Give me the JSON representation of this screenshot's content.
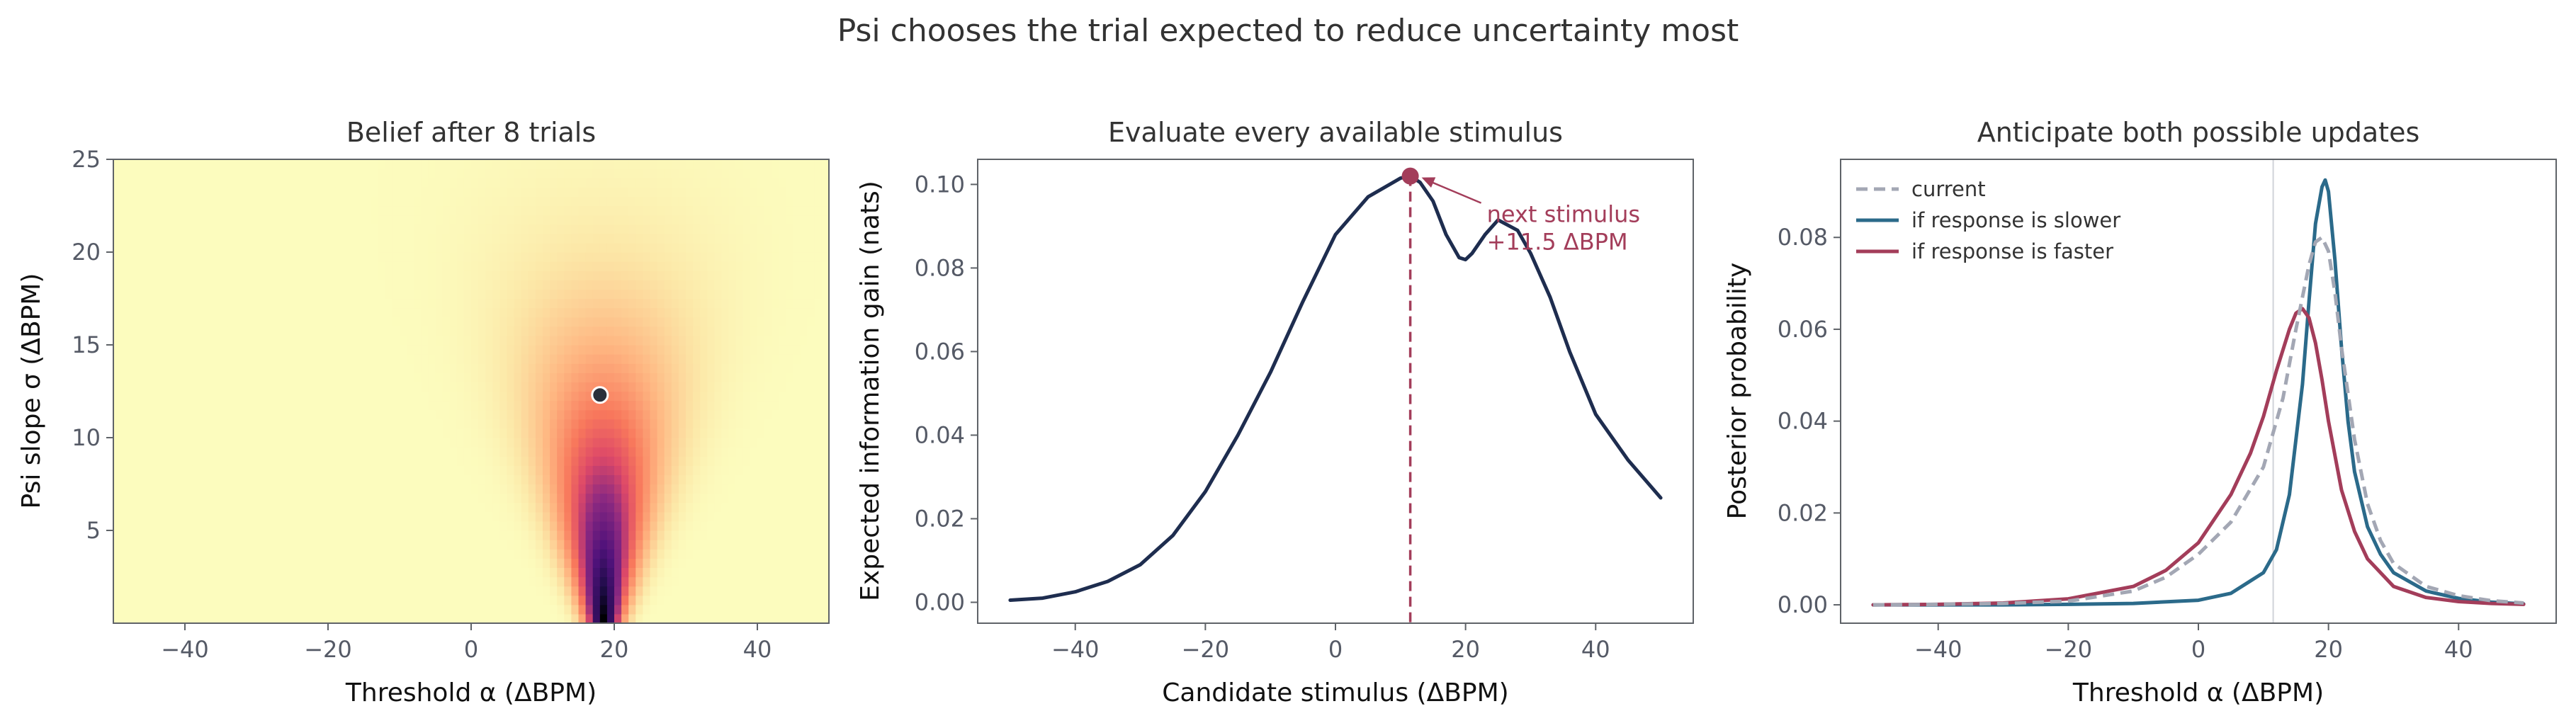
{
  "suptitle": "Psi chooses the trial expected to reduce uncertainty most",
  "chart_data": [
    {
      "type": "heatmap",
      "title": "Belief after 8 trials",
      "xlabel": "Threshold α (ΔBPM)",
      "ylabel": "Psi slope σ (ΔBPM)",
      "xlim": [
        -50,
        50
      ],
      "ylim": [
        0,
        25
      ],
      "xticks": [
        -40,
        -20,
        0,
        20,
        40
      ],
      "yticks": [
        5,
        10,
        15,
        20,
        25
      ],
      "colormap": "magma_r",
      "belief_peak": {
        "threshold": 18.5,
        "slope": 3.5
      },
      "marker": {
        "threshold": 18,
        "slope": 12.3
      },
      "grid": false
    },
    {
      "type": "line",
      "title": "Evaluate every available stimulus",
      "xlabel": "Candidate stimulus (ΔBPM)",
      "ylabel": "Expected information gain (nats)",
      "xlim": [
        -55,
        55
      ],
      "ylim": [
        -0.005,
        0.106
      ],
      "xticks": [
        -40,
        -20,
        0,
        20,
        40
      ],
      "yticks": [
        0.0,
        0.02,
        0.04,
        0.06,
        0.08,
        0.1
      ],
      "ytick_labels": [
        "0.00",
        "0.02",
        "0.04",
        "0.06",
        "0.08",
        "0.10"
      ],
      "series": [
        {
          "color": "#1e2d4f",
          "x": [
            -50,
            -45,
            -40,
            -35,
            -30,
            -25,
            -20,
            -15,
            -10,
            -5,
            0,
            5,
            10,
            11.5,
            13,
            15,
            17,
            19,
            20,
            21,
            23,
            25,
            28,
            30,
            33,
            36,
            40,
            45,
            50
          ],
          "y": [
            0.0005,
            0.001,
            0.0025,
            0.005,
            0.009,
            0.016,
            0.0265,
            0.04,
            0.055,
            0.072,
            0.088,
            0.097,
            0.1015,
            0.102,
            0.1005,
            0.096,
            0.088,
            0.0825,
            0.082,
            0.0835,
            0.088,
            0.0915,
            0.089,
            0.0835,
            0.073,
            0.06,
            0.045,
            0.034,
            0.025
          ]
        }
      ],
      "selected": {
        "x": 11.5,
        "y": 0.102,
        "color": "#a33d5a"
      },
      "annotation": {
        "line1": "next stimulus",
        "line2": "+11.5 ΔBPM"
      },
      "grid": false
    },
    {
      "type": "line",
      "title": "Anticipate both possible updates",
      "xlabel": "Threshold α (ΔBPM)",
      "ylabel": "Posterior probability",
      "xlim": [
        -55,
        55
      ],
      "ylim": [
        -0.004,
        0.097
      ],
      "xticks": [
        -40,
        -20,
        0,
        20,
        40
      ],
      "yticks": [
        0.0,
        0.02,
        0.04,
        0.06,
        0.08
      ],
      "ytick_labels": [
        "0.00",
        "0.02",
        "0.04",
        "0.06",
        "0.08"
      ],
      "vline_x": 11.5,
      "legend_position": "top-left",
      "series": [
        {
          "name": "current",
          "color": "#a3a7b4",
          "dashed": true,
          "x": [
            -50,
            -40,
            -30,
            -20,
            -10,
            -5,
            0,
            5,
            10,
            13,
            15,
            17,
            18,
            19,
            20,
            21,
            22,
            24,
            26,
            28,
            30,
            35,
            40,
            45,
            50
          ],
          "y": [
            0.0,
            0.0001,
            0.0003,
            0.0008,
            0.003,
            0.006,
            0.011,
            0.018,
            0.03,
            0.045,
            0.06,
            0.074,
            0.079,
            0.08,
            0.077,
            0.068,
            0.056,
            0.036,
            0.022,
            0.014,
            0.009,
            0.004,
            0.002,
            0.0009,
            0.0004
          ]
        },
        {
          "name": "if response is slower",
          "color": "#2b6a8a",
          "dashed": false,
          "x": [
            -50,
            -30,
            -20,
            -10,
            0,
            5,
            10,
            12,
            14,
            16,
            17,
            18,
            19,
            19.5,
            20,
            21,
            22,
            23,
            24,
            26,
            28,
            30,
            35,
            40,
            45,
            50
          ],
          "y": [
            0.0,
            0.0,
            0.0001,
            0.0003,
            0.001,
            0.0025,
            0.007,
            0.012,
            0.024,
            0.048,
            0.066,
            0.083,
            0.091,
            0.0925,
            0.09,
            0.075,
            0.056,
            0.04,
            0.029,
            0.017,
            0.011,
            0.007,
            0.003,
            0.0014,
            0.0006,
            0.0002
          ]
        },
        {
          "name": "if response is faster",
          "color": "#a33d5a",
          "dashed": false,
          "x": [
            -50,
            -40,
            -30,
            -20,
            -10,
            -5,
            0,
            5,
            8,
            10,
            12,
            14,
            15,
            16,
            17,
            18,
            19,
            20,
            22,
            24,
            26,
            30,
            35,
            40,
            45,
            50
          ],
          "y": [
            0.0,
            0.0001,
            0.0004,
            0.0013,
            0.004,
            0.0075,
            0.0135,
            0.024,
            0.033,
            0.041,
            0.051,
            0.06,
            0.0635,
            0.0645,
            0.0625,
            0.057,
            0.049,
            0.04,
            0.025,
            0.016,
            0.01,
            0.004,
            0.0016,
            0.0007,
            0.0003,
            0.0001
          ]
        }
      ],
      "grid": false
    }
  ]
}
